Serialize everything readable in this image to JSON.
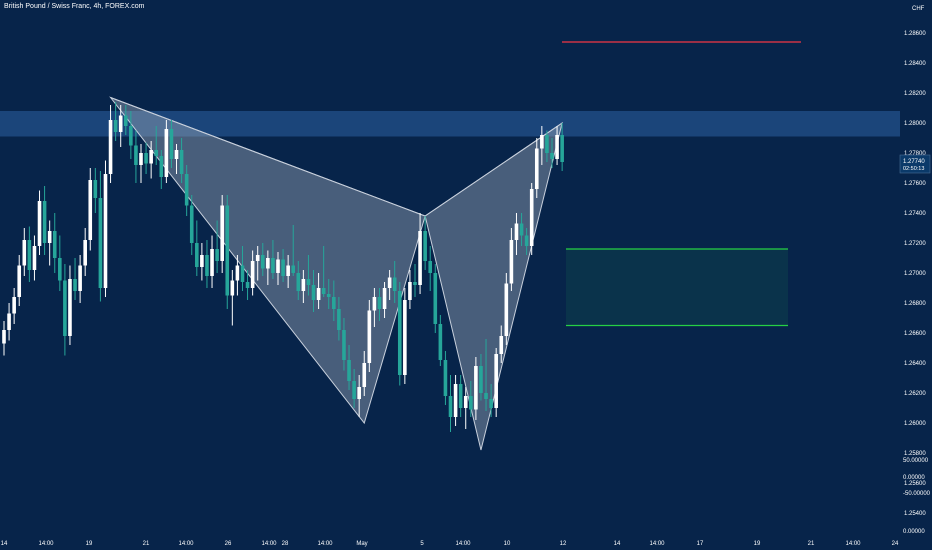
{
  "title": "British Pound / Swiss Franc, 4h, FOREX.com",
  "currency": "CHF",
  "last_price": {
    "value": "1.27740",
    "countdown": "02:50:13"
  },
  "colors": {
    "background": "#07244a",
    "up_body": "#ffffff",
    "down_body": "#26a69a",
    "zone_fill": "#1e4b82",
    "pattern_fill": "#9aa7b8",
    "stop_line": "#f23645",
    "target_line": "#26d044",
    "target_fill": "#0c3a4c",
    "axis_text": "#ffffff"
  },
  "chart_data": {
    "type": "candlestick",
    "symbol": "GBPCHF",
    "timeframe": "4h",
    "y_axis": {
      "price_range": [
        1.2532,
        1.2882
      ],
      "ticks": [
        "1.28600",
        "1.28400",
        "1.28200",
        "1.28000",
        "1.27800",
        "1.27600",
        "1.27400",
        "1.27200",
        "1.27000",
        "1.26800",
        "1.26600",
        "1.26400",
        "1.26200",
        "1.26000",
        "1.25800",
        "1.25600",
        "1.25400"
      ],
      "indicator_ticks": [
        "50.00000",
        "0.00000",
        "-50.00000",
        "0.00000"
      ]
    },
    "x_ticks": [
      "14",
      "14:00",
      "19",
      "21",
      "14:00",
      "26",
      "14:00",
      "28",
      "14:00",
      "May",
      "5",
      "14:00",
      "10",
      "12",
      "14",
      "14:00",
      "17",
      "19",
      "21",
      "14:00",
      "24"
    ],
    "candles": [
      {
        "o": 1.2653,
        "h": 1.2668,
        "l": 1.2645,
        "c": 1.2662
      },
      {
        "o": 1.2662,
        "h": 1.268,
        "l": 1.2655,
        "c": 1.2673
      },
      {
        "o": 1.2673,
        "h": 1.269,
        "l": 1.2666,
        "c": 1.2684
      },
      {
        "o": 1.2684,
        "h": 1.2712,
        "l": 1.2678,
        "c": 1.2705
      },
      {
        "o": 1.2705,
        "h": 1.273,
        "l": 1.2698,
        "c": 1.2722
      },
      {
        "o": 1.2722,
        "h": 1.2731,
        "l": 1.2694,
        "c": 1.2702
      },
      {
        "o": 1.2702,
        "h": 1.2725,
        "l": 1.2695,
        "c": 1.2718
      },
      {
        "o": 1.2718,
        "h": 1.2755,
        "l": 1.2712,
        "c": 1.2748
      },
      {
        "o": 1.2748,
        "h": 1.2758,
        "l": 1.2712,
        "c": 1.272
      },
      {
        "o": 1.272,
        "h": 1.2735,
        "l": 1.2705,
        "c": 1.2728
      },
      {
        "o": 1.2728,
        "h": 1.274,
        "l": 1.27,
        "c": 1.271
      },
      {
        "o": 1.271,
        "h": 1.2725,
        "l": 1.2688,
        "c": 1.2695
      },
      {
        "o": 1.2695,
        "h": 1.2706,
        "l": 1.2645,
        "c": 1.2658
      },
      {
        "o": 1.2658,
        "h": 1.2705,
        "l": 1.2652,
        "c": 1.2696
      },
      {
        "o": 1.2696,
        "h": 1.271,
        "l": 1.2682,
        "c": 1.2688
      },
      {
        "o": 1.2688,
        "h": 1.2712,
        "l": 1.268,
        "c": 1.2705
      },
      {
        "o": 1.2705,
        "h": 1.273,
        "l": 1.2698,
        "c": 1.2722
      },
      {
        "o": 1.2722,
        "h": 1.277,
        "l": 1.2715,
        "c": 1.2762
      },
      {
        "o": 1.2762,
        "h": 1.277,
        "l": 1.274,
        "c": 1.275
      },
      {
        "o": 1.275,
        "h": 1.2768,
        "l": 1.2681,
        "c": 1.269
      },
      {
        "o": 1.269,
        "h": 1.2775,
        "l": 1.2684,
        "c": 1.2766
      },
      {
        "o": 1.2766,
        "h": 1.2812,
        "l": 1.276,
        "c": 1.2802
      },
      {
        "o": 1.2802,
        "h": 1.2814,
        "l": 1.2788,
        "c": 1.2794
      },
      {
        "o": 1.2794,
        "h": 1.2812,
        "l": 1.2784,
        "c": 1.2805
      },
      {
        "o": 1.2805,
        "h": 1.2812,
        "l": 1.2792,
        "c": 1.2798
      },
      {
        "o": 1.2798,
        "h": 1.2808,
        "l": 1.2776,
        "c": 1.2785
      },
      {
        "o": 1.2785,
        "h": 1.2795,
        "l": 1.276,
        "c": 1.2772
      },
      {
        "o": 1.2772,
        "h": 1.2786,
        "l": 1.276,
        "c": 1.278
      },
      {
        "o": 1.278,
        "h": 1.2787,
        "l": 1.2766,
        "c": 1.2773
      },
      {
        "o": 1.2773,
        "h": 1.2788,
        "l": 1.2763,
        "c": 1.2782
      },
      {
        "o": 1.2782,
        "h": 1.2798,
        "l": 1.2772,
        "c": 1.2778
      },
      {
        "o": 1.2778,
        "h": 1.2782,
        "l": 1.2756,
        "c": 1.2764
      },
      {
        "o": 1.2764,
        "h": 1.2802,
        "l": 1.276,
        "c": 1.2796
      },
      {
        "o": 1.2796,
        "h": 1.2802,
        "l": 1.277,
        "c": 1.2776
      },
      {
        "o": 1.2776,
        "h": 1.2786,
        "l": 1.2766,
        "c": 1.2782
      },
      {
        "o": 1.2782,
        "h": 1.279,
        "l": 1.276,
        "c": 1.2766
      },
      {
        "o": 1.2766,
        "h": 1.2772,
        "l": 1.2738,
        "c": 1.2745
      },
      {
        "o": 1.2745,
        "h": 1.2752,
        "l": 1.2712,
        "c": 1.272
      },
      {
        "o": 1.272,
        "h": 1.2735,
        "l": 1.2698,
        "c": 1.2704
      },
      {
        "o": 1.2704,
        "h": 1.272,
        "l": 1.2695,
        "c": 1.2712
      },
      {
        "o": 1.2712,
        "h": 1.2722,
        "l": 1.269,
        "c": 1.2698
      },
      {
        "o": 1.2698,
        "h": 1.2725,
        "l": 1.269,
        "c": 1.2716
      },
      {
        "o": 1.2716,
        "h": 1.2735,
        "l": 1.27,
        "c": 1.2708
      },
      {
        "o": 1.2708,
        "h": 1.2752,
        "l": 1.27,
        "c": 1.2745
      },
      {
        "o": 1.2745,
        "h": 1.2752,
        "l": 1.2676,
        "c": 1.2685
      },
      {
        "o": 1.2685,
        "h": 1.2702,
        "l": 1.2665,
        "c": 1.2695
      },
      {
        "o": 1.2695,
        "h": 1.2712,
        "l": 1.2685,
        "c": 1.2705
      },
      {
        "o": 1.2705,
        "h": 1.2718,
        "l": 1.2688,
        "c": 1.2694
      },
      {
        "o": 1.2694,
        "h": 1.2702,
        "l": 1.2682,
        "c": 1.269
      },
      {
        "o": 1.269,
        "h": 1.2715,
        "l": 1.2685,
        "c": 1.2708
      },
      {
        "o": 1.2708,
        "h": 1.2718,
        "l": 1.2695,
        "c": 1.2712
      },
      {
        "o": 1.2712,
        "h": 1.272,
        "l": 1.2698,
        "c": 1.2703
      },
      {
        "o": 1.2703,
        "h": 1.2715,
        "l": 1.2692,
        "c": 1.271
      },
      {
        "o": 1.271,
        "h": 1.2722,
        "l": 1.2696,
        "c": 1.27
      },
      {
        "o": 1.27,
        "h": 1.2714,
        "l": 1.2692,
        "c": 1.2709
      },
      {
        "o": 1.2709,
        "h": 1.2716,
        "l": 1.2694,
        "c": 1.2698
      },
      {
        "o": 1.2698,
        "h": 1.2712,
        "l": 1.269,
        "c": 1.2705
      },
      {
        "o": 1.2705,
        "h": 1.2732,
        "l": 1.2698,
        "c": 1.27
      },
      {
        "o": 1.27,
        "h": 1.2708,
        "l": 1.2682,
        "c": 1.2688
      },
      {
        "o": 1.2688,
        "h": 1.2702,
        "l": 1.268,
        "c": 1.2696
      },
      {
        "o": 1.2696,
        "h": 1.2712,
        "l": 1.2685,
        "c": 1.2692
      },
      {
        "o": 1.2692,
        "h": 1.2702,
        "l": 1.2674,
        "c": 1.2682
      },
      {
        "o": 1.2682,
        "h": 1.27,
        "l": 1.2676,
        "c": 1.269
      },
      {
        "o": 1.269,
        "h": 1.2718,
        "l": 1.2684,
        "c": 1.2686
      },
      {
        "o": 1.2686,
        "h": 1.2696,
        "l": 1.2676,
        "c": 1.2684
      },
      {
        "o": 1.2684,
        "h": 1.2695,
        "l": 1.2668,
        "c": 1.2676
      },
      {
        "o": 1.2676,
        "h": 1.2684,
        "l": 1.2655,
        "c": 1.2662
      },
      {
        "o": 1.2662,
        "h": 1.267,
        "l": 1.2635,
        "c": 1.2642
      },
      {
        "o": 1.2642,
        "h": 1.2652,
        "l": 1.2622,
        "c": 1.2628
      },
      {
        "o": 1.2628,
        "h": 1.2636,
        "l": 1.261,
        "c": 1.2616
      },
      {
        "o": 1.2616,
        "h": 1.2632,
        "l": 1.2604,
        "c": 1.2624
      },
      {
        "o": 1.2624,
        "h": 1.2648,
        "l": 1.2618,
        "c": 1.264
      },
      {
        "o": 1.264,
        "h": 1.2682,
        "l": 1.2634,
        "c": 1.2675
      },
      {
        "o": 1.2675,
        "h": 1.269,
        "l": 1.2664,
        "c": 1.2684
      },
      {
        "o": 1.2684,
        "h": 1.269,
        "l": 1.2668,
        "c": 1.2676
      },
      {
        "o": 1.2676,
        "h": 1.2694,
        "l": 1.267,
        "c": 1.269
      },
      {
        "o": 1.269,
        "h": 1.2702,
        "l": 1.2682,
        "c": 1.2697
      },
      {
        "o": 1.2697,
        "h": 1.2708,
        "l": 1.268,
        "c": 1.2688
      },
      {
        "o": 1.2688,
        "h": 1.2694,
        "l": 1.2625,
        "c": 1.2632
      },
      {
        "o": 1.2632,
        "h": 1.269,
        "l": 1.2626,
        "c": 1.2682
      },
      {
        "o": 1.2682,
        "h": 1.2702,
        "l": 1.2676,
        "c": 1.2694
      },
      {
        "o": 1.2694,
        "h": 1.2706,
        "l": 1.2684,
        "c": 1.2692
      },
      {
        "o": 1.2692,
        "h": 1.274,
        "l": 1.2686,
        "c": 1.2728
      },
      {
        "o": 1.2728,
        "h": 1.2738,
        "l": 1.2702,
        "c": 1.2708
      },
      {
        "o": 1.2708,
        "h": 1.2718,
        "l": 1.2688,
        "c": 1.27
      },
      {
        "o": 1.27,
        "h": 1.2706,
        "l": 1.266,
        "c": 1.2666
      },
      {
        "o": 1.2666,
        "h": 1.2672,
        "l": 1.2638,
        "c": 1.2642
      },
      {
        "o": 1.2642,
        "h": 1.2648,
        "l": 1.2612,
        "c": 1.2618
      },
      {
        "o": 1.2618,
        "h": 1.2632,
        "l": 1.2594,
        "c": 1.2604
      },
      {
        "o": 1.2604,
        "h": 1.2632,
        "l": 1.2598,
        "c": 1.2626
      },
      {
        "o": 1.2626,
        "h": 1.2632,
        "l": 1.2604,
        "c": 1.261
      },
      {
        "o": 1.261,
        "h": 1.2624,
        "l": 1.2596,
        "c": 1.2618
      },
      {
        "o": 1.2618,
        "h": 1.2628,
        "l": 1.2604,
        "c": 1.2609
      },
      {
        "o": 1.2609,
        "h": 1.2644,
        "l": 1.2602,
        "c": 1.2638
      },
      {
        "o": 1.2638,
        "h": 1.2646,
        "l": 1.2615,
        "c": 1.262
      },
      {
        "o": 1.262,
        "h": 1.2656,
        "l": 1.2608,
        "c": 1.2616
      },
      {
        "o": 1.2616,
        "h": 1.2626,
        "l": 1.2604,
        "c": 1.261
      },
      {
        "o": 1.261,
        "h": 1.265,
        "l": 1.2604,
        "c": 1.2646
      },
      {
        "o": 1.2646,
        "h": 1.2665,
        "l": 1.264,
        "c": 1.2658
      },
      {
        "o": 1.2658,
        "h": 1.27,
        "l": 1.2652,
        "c": 1.2693
      },
      {
        "o": 1.2693,
        "h": 1.273,
        "l": 1.2688,
        "c": 1.2722
      },
      {
        "o": 1.2722,
        "h": 1.274,
        "l": 1.2712,
        "c": 1.2733
      },
      {
        "o": 1.2733,
        "h": 1.274,
        "l": 1.2718,
        "c": 1.2725
      },
      {
        "o": 1.2725,
        "h": 1.273,
        "l": 1.2712,
        "c": 1.2718
      },
      {
        "o": 1.2718,
        "h": 1.276,
        "l": 1.2712,
        "c": 1.2756
      },
      {
        "o": 1.2756,
        "h": 1.279,
        "l": 1.275,
        "c": 1.2783
      },
      {
        "o": 1.2783,
        "h": 1.2798,
        "l": 1.2772,
        "c": 1.2792
      },
      {
        "o": 1.2792,
        "h": 1.2795,
        "l": 1.2774,
        "c": 1.278
      },
      {
        "o": 1.278,
        "h": 1.279,
        "l": 1.277,
        "c": 1.2776
      },
      {
        "o": 1.2776,
        "h": 1.2798,
        "l": 1.2772,
        "c": 1.2792
      },
      {
        "o": 1.2792,
        "h": 1.28,
        "l": 1.2768,
        "c": 1.2774
      }
    ],
    "overlays": {
      "supply_zone": {
        "from": 1.2808,
        "to": 1.2791
      },
      "stop_level": 1.2854,
      "target_zone": {
        "from": 1.2716,
        "to": 1.2665
      },
      "pattern_points": [
        {
          "bar": 21,
          "price": 1.2817
        },
        {
          "bar": 71,
          "price": 1.26
        },
        {
          "bar": 83,
          "price": 1.2738
        },
        {
          "bar": 94,
          "price": 1.2582
        },
        {
          "bar": 110,
          "price": 1.28
        }
      ]
    }
  }
}
